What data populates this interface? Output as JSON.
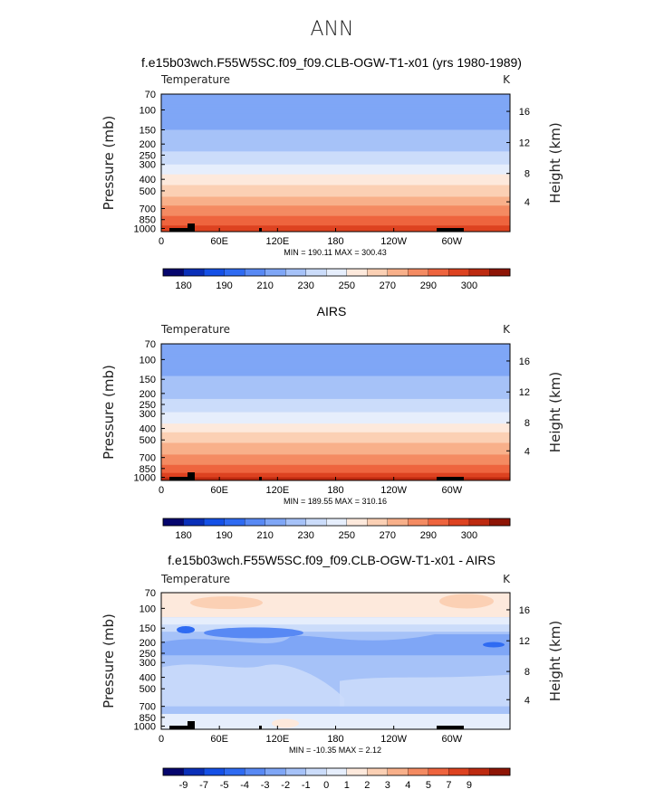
{
  "page": {
    "title": "ANN"
  },
  "palette": {
    "temp": [
      "#06066e",
      "#0a2fb8",
      "#1550e6",
      "#2f6bf2",
      "#5889f4",
      "#7fa6f6",
      "#a6c2f8",
      "#cbdcfa",
      "#e6eefc",
      "#fde9dc",
      "#fbd0b4",
      "#f8b08a",
      "#f48b62",
      "#ee643e",
      "#dd4220",
      "#bd2a10",
      "#8e1506"
    ],
    "diff": [
      "#06066e",
      "#0a2fb8",
      "#1550e6",
      "#2f6bf2",
      "#5889f4",
      "#7fa6f6",
      "#a6c2f8",
      "#cbdcfa",
      "#e6eefc",
      "#fde9dc",
      "#fbd0b4",
      "#f8b08a",
      "#f48b62",
      "#ee643e",
      "#dd4220",
      "#bd2a10",
      "#8e1506"
    ]
  },
  "chart_data": [
    {
      "type": "heatmap",
      "title": "f.e15b03wch.F55W5SC.f09_f09.CLB-OGW-T1-x01 (yrs 1980-1989)",
      "variable": "Temperature",
      "units": "K",
      "ylabel": "Pressure (mb)",
      "ylabel_right": "Height (km)",
      "x_ticks": [
        "0",
        "60E",
        "120E",
        "180",
        "120W",
        "60W"
      ],
      "y_ticks": [
        "70",
        "100",
        "150",
        "200",
        "250",
        "300",
        "400",
        "500",
        "700",
        "850",
        "1000"
      ],
      "y_ticks_right": [
        "16",
        "12",
        "8",
        "4"
      ],
      "stats": {
        "min_label": "MIN =",
        "min": "190.11",
        "max_label": "MAX =",
        "max": "300.43"
      },
      "colorbar_labels": [
        "180",
        "190",
        "210",
        "230",
        "250",
        "270",
        "290",
        "300"
      ],
      "levels": [
        {
          "p": 70,
          "v": 205
        },
        {
          "p": 100,
          "v": 205
        },
        {
          "p": 150,
          "v": 210
        },
        {
          "p": 200,
          "v": 216
        },
        {
          "p": 250,
          "v": 222
        },
        {
          "p": 300,
          "v": 230
        },
        {
          "p": 400,
          "v": 245
        },
        {
          "p": 500,
          "v": 255
        },
        {
          "p": 700,
          "v": 272
        },
        {
          "p": 850,
          "v": 283
        },
        {
          "p": 1000,
          "v": 294
        }
      ]
    },
    {
      "type": "heatmap",
      "title": "AIRS",
      "variable": "Temperature",
      "units": "K",
      "ylabel": "Pressure (mb)",
      "ylabel_right": "Height (km)",
      "x_ticks": [
        "0",
        "60E",
        "120E",
        "180",
        "120W",
        "60W"
      ],
      "y_ticks": [
        "70",
        "100",
        "150",
        "200",
        "250",
        "300",
        "400",
        "500",
        "700",
        "850",
        "1000"
      ],
      "y_ticks_right": [
        "16",
        "12",
        "8",
        "4"
      ],
      "stats": {
        "min_label": "MIN =",
        "min": "189.55",
        "max_label": "MAX =",
        "max": "310.16"
      },
      "colorbar_labels": [
        "180",
        "190",
        "210",
        "230",
        "250",
        "270",
        "290",
        "300"
      ],
      "levels": [
        {
          "p": 70,
          "v": 206
        },
        {
          "p": 100,
          "v": 205
        },
        {
          "p": 150,
          "v": 211
        },
        {
          "p": 200,
          "v": 217
        },
        {
          "p": 250,
          "v": 223
        },
        {
          "p": 300,
          "v": 231
        },
        {
          "p": 400,
          "v": 246
        },
        {
          "p": 500,
          "v": 256
        },
        {
          "p": 700,
          "v": 273
        },
        {
          "p": 850,
          "v": 284
        },
        {
          "p": 1000,
          "v": 295
        }
      ]
    },
    {
      "type": "heatmap",
      "title": "f.e15b03wch.F55W5SC.f09_f09.CLB-OGW-T1-x01 - AIRS",
      "variable": "Temperature",
      "units": "K",
      "ylabel": "Pressure (mb)",
      "ylabel_right": "Height (km)",
      "x_ticks": [
        "0",
        "60E",
        "120E",
        "180",
        "120W",
        "60W"
      ],
      "y_ticks": [
        "70",
        "100",
        "150",
        "200",
        "250",
        "300",
        "400",
        "500",
        "700",
        "850",
        "1000"
      ],
      "y_ticks_right": [
        "16",
        "12",
        "8",
        "4"
      ],
      "stats": {
        "min_label": "MIN =",
        "min": "-10.35",
        "max_label": "MAX =",
        "max": "2.12"
      },
      "colorbar_labels": [
        "-9",
        "-7",
        "-5",
        "-4",
        "-3",
        "-2",
        "-1",
        "0",
        "1",
        "2",
        "3",
        "4",
        "5",
        "7",
        "9"
      ]
    }
  ]
}
